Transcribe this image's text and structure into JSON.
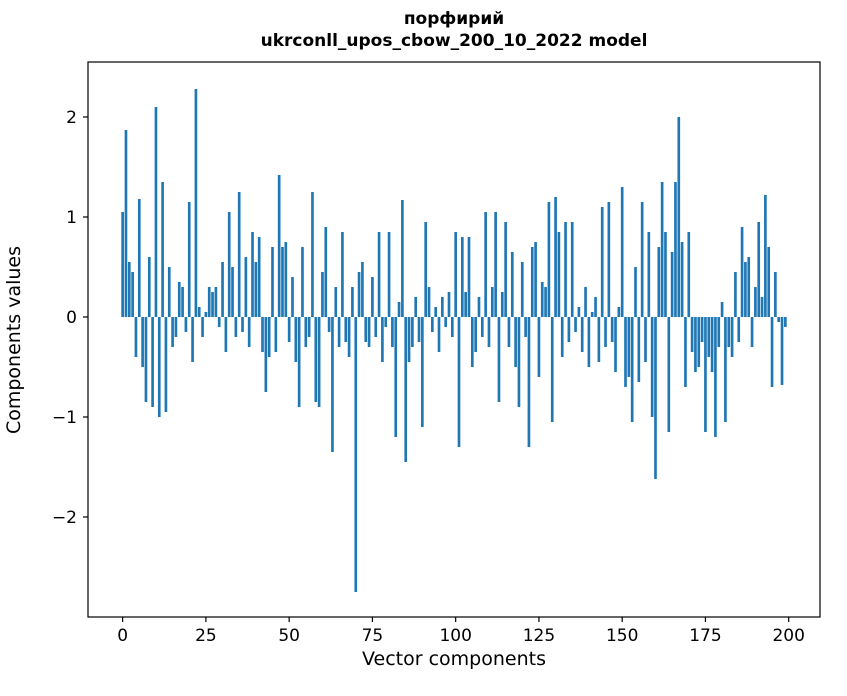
{
  "chart_data": {
    "type": "bar",
    "title": "порфирий",
    "subtitle": "ukrconll_upos_cbow_200_10_2022 model",
    "xlabel": "Vector components",
    "ylabel": "Components values",
    "bar_color": "#1f77b4",
    "axis_color": "#000000",
    "background_color": "#ffffff",
    "xlim": [
      -10.4,
      209.4
    ],
    "ylim": [
      -3.0,
      2.55
    ],
    "xticks": [
      0,
      25,
      50,
      75,
      100,
      125,
      150,
      175,
      200
    ],
    "yticks": [
      -2,
      -1,
      0,
      1,
      2
    ],
    "x_range": [
      0,
      199
    ],
    "bar_width": 0.8,
    "grid": false,
    "legend": "none",
    "values": [
      1.05,
      1.87,
      0.55,
      0.45,
      -0.4,
      1.18,
      -0.5,
      -0.85,
      0.6,
      -0.9,
      2.1,
      -1.0,
      1.35,
      -0.95,
      0.5,
      -0.3,
      -0.2,
      0.35,
      0.3,
      -0.15,
      1.15,
      -0.45,
      2.28,
      0.1,
      -0.2,
      0.05,
      0.3,
      0.25,
      0.3,
      -0.1,
      0.55,
      -0.35,
      1.05,
      0.5,
      -0.2,
      1.25,
      -0.15,
      0.6,
      -0.3,
      0.85,
      0.55,
      0.8,
      -0.35,
      -0.75,
      -0.4,
      0.7,
      -0.35,
      1.42,
      0.7,
      0.75,
      -0.25,
      0.4,
      -0.45,
      -0.9,
      0.7,
      -0.3,
      -0.2,
      1.25,
      -0.85,
      -0.9,
      0.45,
      0.9,
      -0.15,
      -1.35,
      0.3,
      -0.3,
      0.85,
      -0.25,
      -0.4,
      0.3,
      -2.75,
      0.45,
      0.55,
      -0.25,
      -0.3,
      0.4,
      -0.2,
      0.85,
      -0.45,
      -0.1,
      0.85,
      -0.3,
      -1.2,
      0.15,
      1.17,
      -1.45,
      -0.45,
      -0.3,
      0.2,
      -0.25,
      -1.1,
      0.95,
      0.3,
      -0.15,
      0.1,
      -0.35,
      0.2,
      -0.1,
      0.25,
      -0.2,
      0.85,
      -1.3,
      0.8,
      0.25,
      0.8,
      -0.5,
      -0.35,
      0.2,
      -0.2,
      1.05,
      -0.3,
      0.3,
      1.05,
      -0.85,
      0.25,
      0.95,
      -0.3,
      0.65,
      -0.5,
      -0.9,
      0.55,
      -0.2,
      -1.3,
      0.7,
      0.75,
      -0.6,
      0.35,
      0.3,
      1.15,
      -1.05,
      1.2,
      0.85,
      -0.4,
      0.95,
      -0.25,
      0.95,
      -0.15,
      0.1,
      -0.35,
      0.3,
      -0.5,
      0.05,
      0.2,
      -0.45,
      1.1,
      -0.3,
      1.15,
      -0.25,
      -0.55,
      0.1,
      1.3,
      -0.7,
      -0.6,
      -1.05,
      0.5,
      -0.65,
      1.15,
      -0.45,
      0.85,
      -1.0,
      -1.62,
      0.7,
      1.35,
      0.85,
      -1.15,
      0.65,
      1.35,
      2.0,
      0.75,
      -0.7,
      0.85,
      -0.35,
      -0.55,
      -0.5,
      -0.25,
      -1.15,
      -0.4,
      -0.55,
      -1.2,
      -0.3,
      0.15,
      -1.05,
      -0.3,
      -0.4,
      0.45,
      -0.25,
      0.9,
      0.55,
      0.6,
      -0.3,
      0.3,
      0.95,
      0.2,
      1.22,
      0.7,
      -0.7,
      0.45,
      -0.05,
      -0.68,
      -0.1
    ]
  }
}
